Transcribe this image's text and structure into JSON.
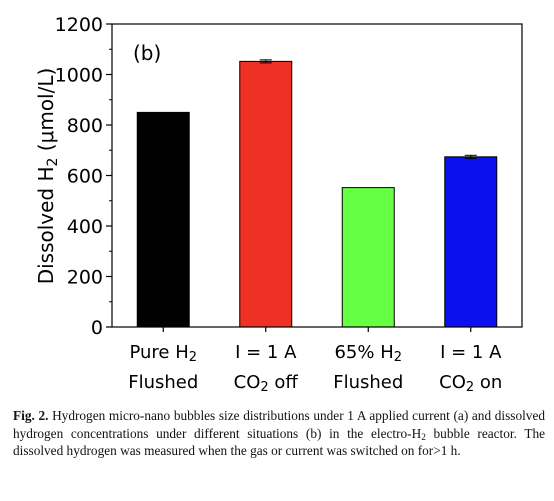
{
  "chart_data": {
    "type": "bar",
    "panel_label": "(b)",
    "ylabel": "Dissolved H2 (μmol/L)",
    "ylabel_parts": {
      "before": "Dissolved H",
      "sub": "2",
      "after": " (μmol/L)"
    },
    "ylim": [
      0,
      1200
    ],
    "yticks": [
      0,
      200,
      400,
      600,
      800,
      1000,
      1200
    ],
    "categories": [
      {
        "line1": "Pure H2",
        "line2": "Flushed"
      },
      {
        "line1": "I = 1 A",
        "line2": "CO2 off"
      },
      {
        "line1": "65% H2",
        "line2": "Flushed"
      },
      {
        "line1": "I = 1 A",
        "line2": "CO2 on"
      }
    ],
    "values": [
      850,
      1052,
      552,
      674
    ],
    "errors": [
      0,
      6,
      0,
      6
    ],
    "colors": [
      "#000000",
      "#ee3124",
      "#66ff44",
      "#0a10ee"
    ],
    "grid": false,
    "legend": "none"
  },
  "caption": {
    "fig_label": "Fig. 2.",
    "text_part1": " Hydrogen micro-nano bubbles size distributions under 1 A applied current (a) and dissolved hydrogen concentrations under different situations (b) in the electro-H",
    "sub": "2",
    "text_part2": " bubble reactor. The dissolved hydrogen was measured when the gas or current was switched on for>1 h."
  }
}
